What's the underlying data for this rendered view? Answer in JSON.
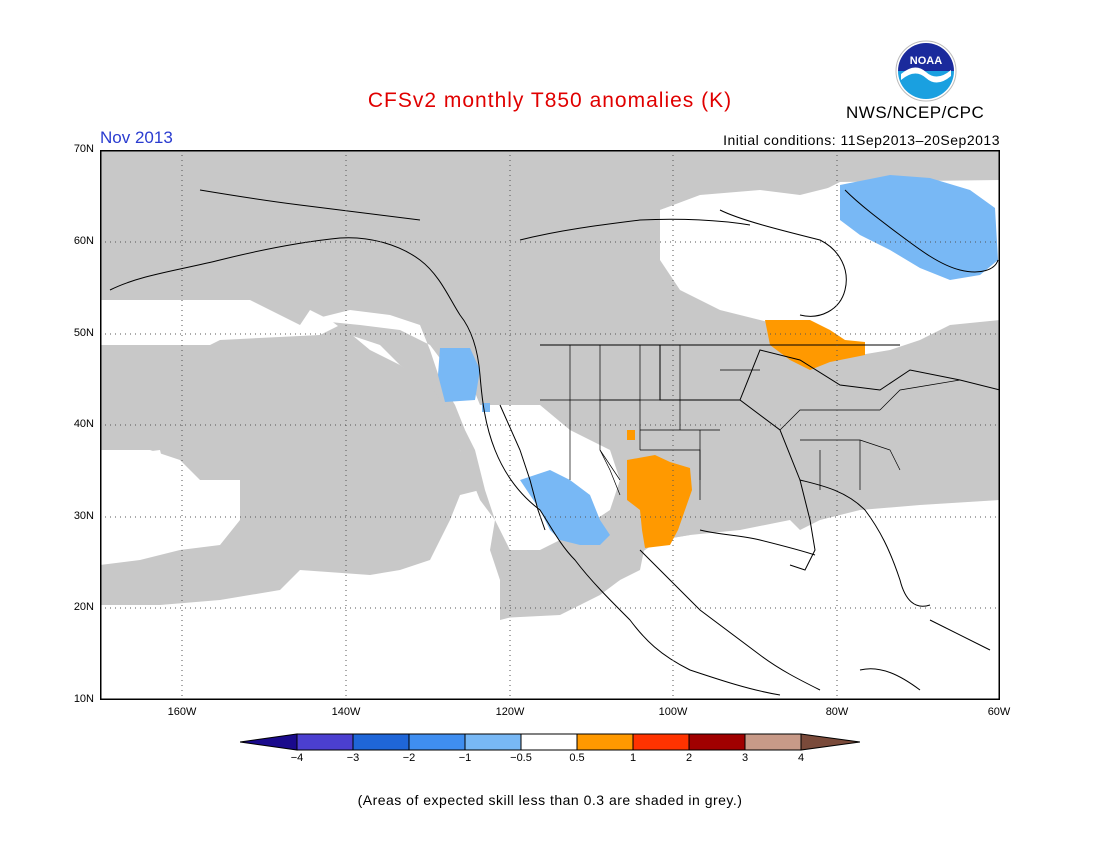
{
  "title": "CFSv2 monthly T850 anomalies (K)",
  "month_label": "Nov 2013",
  "initial_conditions": "Initial conditions: 11Sep2013–20Sep2013",
  "agency": "NWS/NCEP/CPC",
  "logo_text": "NOAA",
  "footnote": "(Areas of expected skill less than 0.3 are shaded in grey.)",
  "lat_labels": [
    "70N",
    "60N",
    "50N",
    "40N",
    "30N",
    "20N",
    "10N"
  ],
  "lon_labels": [
    "160W",
    "140W",
    "120W",
    "100W",
    "80W",
    "60W"
  ],
  "colorbar": {
    "labels": [
      "−4",
      "−3",
      "−2",
      "−1",
      "−0.5",
      "0.5",
      "1",
      "2",
      "3",
      "4"
    ],
    "colors": [
      "#1a0a8c",
      "#4b3fd0",
      "#1f66d8",
      "#3f8ef0",
      "#78b8f5",
      "#ffffff",
      "#ff9900",
      "#ff3300",
      "#a00000",
      "#c89a88",
      "#7a4a3a"
    ]
  },
  "chart_data": {
    "type": "heatmap",
    "title": "CFSv2 monthly T850 anomalies (K)",
    "period": "Nov 2013",
    "lon_range": [
      -170,
      -60
    ],
    "lat_range": [
      10,
      70
    ],
    "grid_spacing_deg": 10,
    "units": "K",
    "skill_mask_color": "#c8c8c8",
    "regions": [
      {
        "description": "Northern Labrador / Baffin region",
        "anomaly_bin": "-1 to -0.5",
        "color": "#78b8f5"
      },
      {
        "description": "Pacific Northwest coast (Oregon/Washington)",
        "anomaly_bin": "-1 to -0.5",
        "color": "#78b8f5"
      },
      {
        "description": "Baja California / Sonora / Gulf of California",
        "anomaly_bin": "-1 to -0.5",
        "color": "#78b8f5"
      },
      {
        "description": "West Texas / eastern New Mexico",
        "anomaly_bin": "0.5 to 1",
        "color": "#ff9900"
      },
      {
        "description": "Northern Ontario / Lake Superior",
        "anomaly_bin": "0.5 to 1",
        "color": "#ff9900"
      },
      {
        "description": "Southwestern US / Hudson Bay / Pacific / Caribbean",
        "anomaly_bin": "-0.5 to 0.5",
        "color": "#ffffff"
      }
    ]
  }
}
